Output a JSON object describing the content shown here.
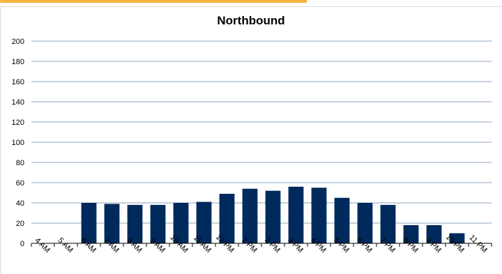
{
  "chart_data": {
    "type": "bar",
    "title": "Northbound",
    "xlabel": "",
    "ylabel": "",
    "categories": [
      "4 AM",
      "5 AM",
      "6 AM",
      "7 AM",
      "8 AM",
      "9 AM",
      "10 AM",
      "11 AM",
      "12 PM",
      "1 PM",
      "2 PM",
      "3 PM",
      "4 PM",
      "5 PM",
      "6 PM",
      "7 PM",
      "8 PM",
      "9 PM",
      "10 PM",
      "11 PM"
    ],
    "values": [
      0,
      0,
      40,
      39,
      38,
      38,
      40,
      41,
      49,
      54,
      52,
      56,
      55,
      45,
      40,
      38,
      18,
      18,
      10,
      0
    ],
    "ylim": [
      0,
      200
    ],
    "yticks": [
      0,
      20,
      40,
      60,
      80,
      100,
      120,
      140,
      160,
      180,
      200
    ],
    "grid": true,
    "legend": "none",
    "colors": {
      "bar": "#002a5c",
      "grid": "#8ea5bd",
      "axis": "#000000",
      "accent": "#f5b43c"
    }
  }
}
